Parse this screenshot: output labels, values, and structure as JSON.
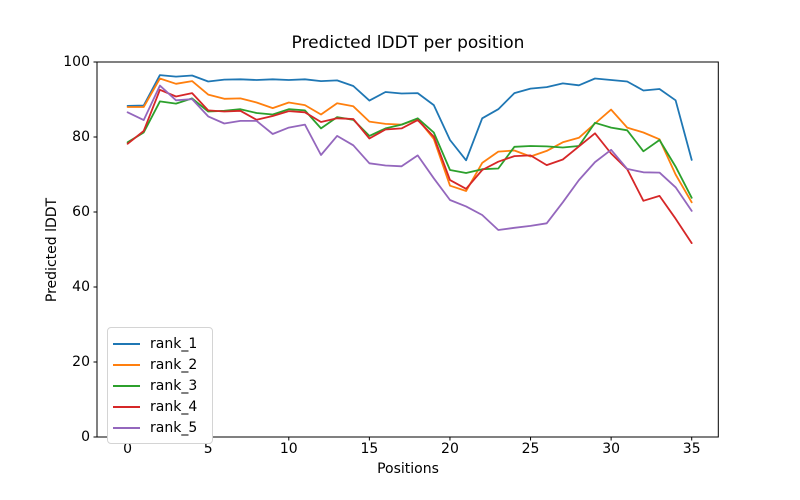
{
  "figure": {
    "title": "Predicted lDDT per position",
    "xlabel": "Positions",
    "ylabel": "Predicted lDDT"
  },
  "chart_data": {
    "type": "line",
    "title": "Predicted lDDT per position",
    "xlabel": "Positions",
    "ylabel": "Predicted lDDT",
    "grid": false,
    "legend_position": "lower left",
    "xlim": [
      -1.9,
      36.65
    ],
    "ylim": [
      0,
      100
    ],
    "xticks": [
      0,
      5,
      10,
      15,
      20,
      25,
      30,
      35
    ],
    "yticks": [
      0,
      20,
      40,
      60,
      80,
      100
    ],
    "x": [
      0,
      1,
      2,
      3,
      4,
      5,
      6,
      7,
      8,
      9,
      10,
      11,
      12,
      13,
      14,
      15,
      16,
      17,
      18,
      19,
      20,
      21,
      22,
      23,
      24,
      25,
      26,
      27,
      28,
      29,
      30,
      31,
      32,
      33,
      34,
      35
    ],
    "series": [
      {
        "name": "rank_1",
        "color": "#1f77b4",
        "values": [
          88.3,
          88.4,
          96.5,
          96.1,
          96.4,
          94.8,
          95.3,
          95.4,
          95.2,
          95.4,
          95.2,
          95.4,
          94.9,
          95.1,
          93.6,
          89.7,
          92.0,
          91.6,
          91.7,
          88.5,
          79.2,
          73.8,
          85.0,
          87.4,
          91.7,
          92.9,
          93.3,
          94.3,
          93.8,
          95.6,
          95.2,
          94.8,
          92.4,
          92.8,
          89.8,
          73.9
        ]
      },
      {
        "name": "rank_2",
        "color": "#ff7f0e",
        "values": [
          88.0,
          88.0,
          95.6,
          94.2,
          94.9,
          91.3,
          90.2,
          90.3,
          89.2,
          87.7,
          89.2,
          88.5,
          86.0,
          89.0,
          88.2,
          84.1,
          83.5,
          83.3,
          84.8,
          79.5,
          67.0,
          65.6,
          73.1,
          76.1,
          76.4,
          74.8,
          76.3,
          78.6,
          79.8,
          83.6,
          87.3,
          82.5,
          81.2,
          79.4,
          70.0,
          62.6
        ]
      },
      {
        "name": "rank_3",
        "color": "#2ca02c",
        "values": [
          78.6,
          81.2,
          89.5,
          88.9,
          90.3,
          86.8,
          87.0,
          87.4,
          86.4,
          86.0,
          87.4,
          87.1,
          82.3,
          85.3,
          84.6,
          80.3,
          82.3,
          83.3,
          85.0,
          81.2,
          71.2,
          70.4,
          71.4,
          71.6,
          77.4,
          77.6,
          77.5,
          77.2,
          77.6,
          83.8,
          82.5,
          81.8,
          76.2,
          79.2,
          72.1,
          63.8
        ]
      },
      {
        "name": "rank_4",
        "color": "#d62728",
        "values": [
          78.2,
          81.6,
          92.6,
          90.8,
          91.7,
          87.1,
          86.8,
          87.0,
          84.6,
          85.6,
          86.9,
          86.6,
          84.0,
          85.0,
          84.8,
          79.6,
          82.0,
          82.3,
          84.5,
          80.1,
          68.5,
          66.2,
          71.2,
          73.4,
          74.9,
          75.1,
          72.5,
          74.0,
          77.5,
          81.0,
          75.6,
          71.4,
          63.0,
          64.3,
          58.2,
          51.7
        ]
      },
      {
        "name": "rank_5",
        "color": "#9467bd",
        "values": [
          86.6,
          84.5,
          93.7,
          89.8,
          90.1,
          85.5,
          83.6,
          84.3,
          84.3,
          80.8,
          82.5,
          83.3,
          75.2,
          80.3,
          77.8,
          73.0,
          72.4,
          72.2,
          75.1,
          69.0,
          63.2,
          61.5,
          59.2,
          55.2,
          55.8,
          56.3,
          57.0,
          62.6,
          68.5,
          73.3,
          76.6,
          71.5,
          70.6,
          70.5,
          66.6,
          60.3
        ]
      }
    ]
  }
}
